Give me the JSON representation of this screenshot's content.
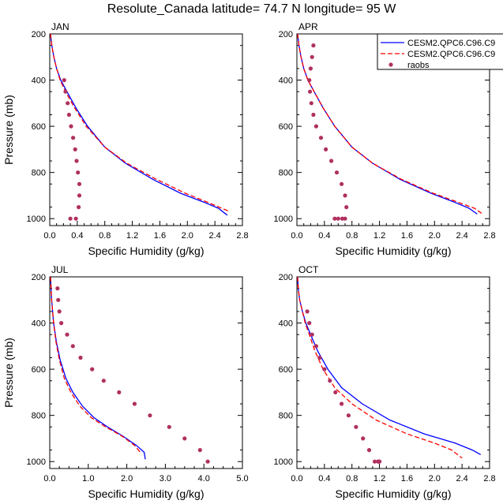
{
  "title": "Resolute_Canada  latitude= 74.7 N longitude= 95 W",
  "legend": {
    "entries": [
      {
        "label": "CESM2.QPC6.C96.C9",
        "style": "solid",
        "color": "#0000ff"
      },
      {
        "label": "CESM2.QPC6.C96.C9",
        "style": "dashed",
        "color": "#ff0000"
      },
      {
        "label": "raobs",
        "style": "dots",
        "color": "#b03060"
      }
    ]
  },
  "chart_data": [
    {
      "type": "line",
      "panel": "JAN",
      "xlabel": "Specific Humidity (g/kg)",
      "ylabel": "Pressure (mb)",
      "xlim": [
        0,
        2.8
      ],
      "ylim": [
        200,
        1030
      ],
      "xticks": [
        0.0,
        0.4,
        0.8,
        1.2,
        1.6,
        2.0,
        2.4,
        2.8
      ],
      "xtick_labels": [
        "0.0",
        "0.4",
        "0.8",
        "1.2",
        "1.6",
        "2.0",
        "2.4",
        "2.8"
      ],
      "yticks": [
        200,
        400,
        600,
        800,
        1000
      ],
      "ytick_labels": [
        "200",
        "400",
        "600",
        "800",
        "1000"
      ],
      "series": [
        {
          "name": "CESM2.QPC6.C96.C9 (solid)",
          "x": [
            0.01,
            0.03,
            0.06,
            0.1,
            0.16,
            0.25,
            0.38,
            0.55,
            0.8,
            1.1,
            1.5,
            1.9,
            2.25,
            2.45,
            2.58
          ],
          "y": [
            200,
            250,
            300,
            350,
            400,
            450,
            520,
            600,
            690,
            760,
            830,
            890,
            930,
            955,
            985
          ]
        },
        {
          "name": "CESM2.QPC6.C96.C9 (dashed)",
          "x": [
            0.01,
            0.03,
            0.06,
            0.1,
            0.15,
            0.23,
            0.36,
            0.53,
            0.8,
            1.12,
            1.55,
            1.97,
            2.3,
            2.5,
            2.62
          ],
          "y": [
            200,
            250,
            300,
            350,
            400,
            450,
            520,
            600,
            690,
            760,
            830,
            890,
            930,
            955,
            970
          ]
        },
        {
          "name": "raobs",
          "x": [
            0.21,
            0.23,
            0.26,
            0.28,
            0.31,
            0.34,
            0.37,
            0.39,
            0.41,
            0.43,
            0.43,
            0.42,
            0.38,
            0.3
          ],
          "y": [
            400,
            450,
            500,
            550,
            600,
            650,
            700,
            750,
            800,
            850,
            900,
            950,
            1000,
            1000
          ]
        }
      ]
    },
    {
      "type": "line",
      "panel": "APR",
      "xlabel": "Specific Humidity (g/kg)",
      "ylabel": "",
      "xlim": [
        0,
        2.8
      ],
      "ylim": [
        200,
        1030
      ],
      "xticks": [
        0.0,
        0.4,
        0.8,
        1.2,
        1.6,
        2.0,
        2.4,
        2.8
      ],
      "xtick_labels": [
        "0.0",
        "0.4",
        "0.8",
        "1.2",
        "1.6",
        "2.0",
        "2.4",
        "2.8"
      ],
      "yticks": [
        200,
        400,
        600,
        800,
        1000
      ],
      "ytick_labels": [
        "200",
        "400",
        "600",
        "800",
        "1000"
      ],
      "series": [
        {
          "name": "CESM2.QPC6.C96.C9 (solid)",
          "x": [
            0.01,
            0.03,
            0.06,
            0.1,
            0.16,
            0.25,
            0.38,
            0.55,
            0.8,
            1.1,
            1.5,
            1.95,
            2.3,
            2.5,
            2.62
          ],
          "y": [
            200,
            250,
            300,
            350,
            400,
            450,
            520,
            600,
            690,
            760,
            830,
            890,
            930,
            955,
            980
          ]
        },
        {
          "name": "CESM2.QPC6.C96.C9 (dashed)",
          "x": [
            0.01,
            0.03,
            0.06,
            0.1,
            0.16,
            0.25,
            0.38,
            0.55,
            0.8,
            1.1,
            1.52,
            1.98,
            2.35,
            2.58,
            2.7
          ],
          "y": [
            200,
            250,
            300,
            350,
            400,
            450,
            520,
            600,
            690,
            760,
            830,
            890,
            930,
            955,
            980
          ]
        },
        {
          "name": "raobs",
          "x": [
            0.24,
            0.22,
            0.2,
            0.18,
            0.19,
            0.21,
            0.24,
            0.28,
            0.35,
            0.42,
            0.5,
            0.58,
            0.65,
            0.7,
            0.72,
            0.7,
            0.66,
            0.6,
            0.55
          ],
          "y": [
            250,
            300,
            350,
            400,
            450,
            500,
            550,
            600,
            650,
            700,
            750,
            800,
            850,
            900,
            950,
            1000,
            1000,
            1000,
            1000
          ]
        }
      ]
    },
    {
      "type": "line",
      "panel": "JUL",
      "xlabel": "Specific Humidity (g/kg)",
      "ylabel": "Pressure (mb)",
      "xlim": [
        0,
        5.0
      ],
      "ylim": [
        200,
        1030
      ],
      "xticks": [
        0.0,
        1.0,
        2.0,
        3.0,
        4.0,
        5.0
      ],
      "xtick_labels": [
        "0.0",
        "1.0",
        "2.0",
        "3.0",
        "4.0",
        "5.0"
      ],
      "yticks": [
        200,
        400,
        600,
        800,
        1000
      ],
      "ytick_labels": [
        "200",
        "400",
        "600",
        "800",
        "1000"
      ],
      "series": [
        {
          "name": "CESM2.QPC6.C96.C9 (solid)",
          "x": [
            0.02,
            0.05,
            0.1,
            0.17,
            0.27,
            0.42,
            0.6,
            0.85,
            1.15,
            1.5,
            1.9,
            2.25,
            2.45,
            2.48
          ],
          "y": [
            200,
            300,
            400,
            480,
            560,
            640,
            700,
            760,
            810,
            850,
            890,
            930,
            960,
            990
          ]
        },
        {
          "name": "CESM2.QPC6.C96.C9 (dashed)",
          "x": [
            0.02,
            0.05,
            0.1,
            0.16,
            0.25,
            0.38,
            0.55,
            0.78,
            1.08,
            1.45,
            1.88,
            2.2,
            2.35
          ],
          "y": [
            200,
            300,
            400,
            480,
            560,
            640,
            700,
            760,
            810,
            850,
            890,
            930,
            960
          ]
        },
        {
          "name": "raobs",
          "x": [
            0.2,
            0.22,
            0.25,
            0.3,
            0.45,
            0.6,
            0.8,
            1.1,
            1.4,
            1.8,
            2.2,
            2.6,
            3.1,
            3.5,
            3.9,
            4.1
          ],
          "y": [
            250,
            300,
            350,
            400,
            450,
            500,
            550,
            600,
            650,
            700,
            750,
            800,
            850,
            900,
            950,
            1000
          ]
        }
      ]
    },
    {
      "type": "line",
      "panel": "OCT",
      "xlabel": "Specific Humidity (g/kg)",
      "ylabel": "",
      "xlim": [
        0,
        2.8
      ],
      "ylim": [
        200,
        1030
      ],
      "xticks": [
        0.0,
        0.4,
        0.8,
        1.2,
        1.6,
        2.0,
        2.4,
        2.8
      ],
      "xtick_labels": [
        "0.0",
        "0.4",
        "0.8",
        "1.2",
        "1.6",
        "2.0",
        "2.4",
        "2.8"
      ],
      "yticks": [
        200,
        400,
        600,
        800,
        1000
      ],
      "ytick_labels": [
        "200",
        "400",
        "600",
        "800",
        "1000"
      ],
      "series": [
        {
          "name": "CESM2.QPC6.C96.C9 (solid)",
          "x": [
            0.01,
            0.02,
            0.04,
            0.08,
            0.13,
            0.2,
            0.3,
            0.45,
            0.65,
            0.95,
            1.35,
            1.85,
            2.3,
            2.55,
            2.67
          ],
          "y": [
            200,
            250,
            300,
            350,
            400,
            450,
            520,
            600,
            680,
            750,
            820,
            880,
            920,
            950,
            970
          ]
        },
        {
          "name": "CESM2.QPC6.C96.C9 (dashed)",
          "x": [
            0.01,
            0.02,
            0.04,
            0.08,
            0.12,
            0.18,
            0.26,
            0.38,
            0.55,
            0.8,
            1.15,
            1.6,
            2.0,
            2.25,
            2.4
          ],
          "y": [
            200,
            250,
            300,
            350,
            400,
            450,
            520,
            600,
            680,
            750,
            820,
            880,
            920,
            950,
            985
          ]
        },
        {
          "name": "raobs",
          "x": [
            0.15,
            0.18,
            0.22,
            0.28,
            0.33,
            0.4,
            0.48,
            0.56,
            0.65,
            0.75,
            0.86,
            0.96,
            1.05,
            1.13,
            1.18,
            1.2,
            1.19,
            1.18
          ],
          "y": [
            350,
            400,
            450,
            500,
            550,
            600,
            650,
            700,
            750,
            800,
            850,
            900,
            950,
            1000,
            1000,
            1000,
            1000,
            1000
          ]
        }
      ]
    }
  ]
}
